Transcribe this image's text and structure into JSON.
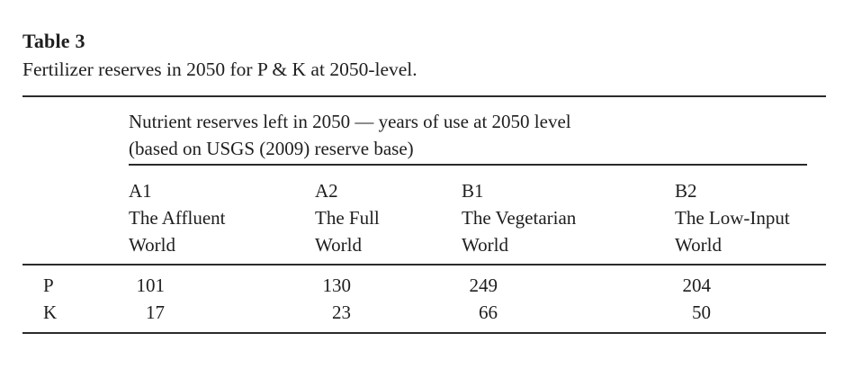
{
  "title": "Table 3",
  "caption": "Fertilizer reserves in 2050 for P & K at 2050-level.",
  "table": {
    "spanner": {
      "line1": "Nutrient reserves left in 2050 — years of use at 2050 level",
      "line2": "(based on USGS (2009) reserve base)"
    },
    "columns": [
      {
        "lines": [
          "A1",
          "The Affluent",
          "World"
        ]
      },
      {
        "lines": [
          "A2",
          "The Full",
          "World"
        ]
      },
      {
        "lines": [
          "B1",
          "The Vegetarian",
          "World"
        ]
      },
      {
        "lines": [
          "B2",
          "The Low-Input",
          "World"
        ]
      }
    ],
    "rows": [
      {
        "label": "P",
        "values": [
          "101",
          "130",
          "249",
          "204"
        ]
      },
      {
        "label": "K",
        "values": [
          "17",
          "23",
          "66",
          "50"
        ]
      }
    ]
  },
  "chart_data": {
    "type": "table",
    "title": "Table 3",
    "subtitle": "Fertilizer reserves in 2050 for P & K at 2050-level.",
    "column_group_header": "Nutrient reserves left in 2050 — years of use at 2050 level (based on USGS (2009) reserve base)",
    "categories": [
      "A1 The Affluent World",
      "A2 The Full World",
      "B1 The Vegetarian World",
      "B2 The Low-Input World"
    ],
    "series": [
      {
        "name": "P",
        "values": [
          101,
          130,
          249,
          204
        ]
      },
      {
        "name": "K",
        "values": [
          17,
          23,
          66,
          50
        ]
      }
    ]
  }
}
